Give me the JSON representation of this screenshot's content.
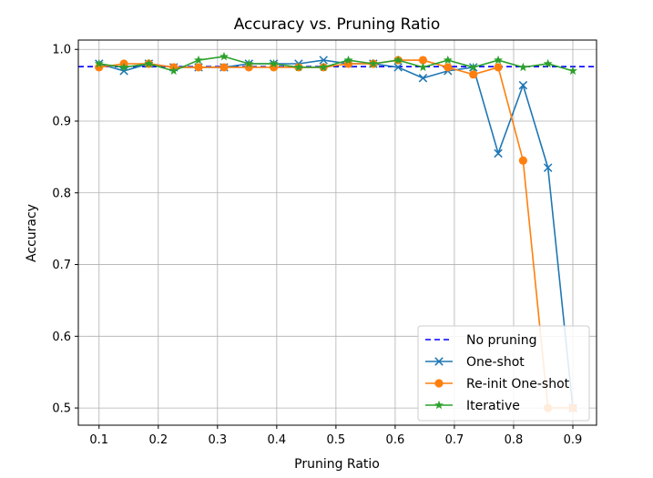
{
  "chart_data": {
    "type": "line",
    "title": "Accuracy vs. Pruning Ratio",
    "xlabel": "Pruning Ratio",
    "ylabel": "Accuracy",
    "xlim": [
      0.065,
      0.94
    ],
    "ylim": [
      0.476,
      1.013
    ],
    "xticks": [
      0.1,
      0.2,
      0.3,
      0.4,
      0.5,
      0.6,
      0.7,
      0.8,
      0.9
    ],
    "xtick_labels": [
      "0.1",
      "0.2",
      "0.3",
      "0.4",
      "0.5",
      "0.6",
      "0.7",
      "0.8",
      "0.9"
    ],
    "yticks": [
      0.5,
      0.6,
      0.7,
      0.8,
      0.9,
      1.0
    ],
    "ytick_labels": [
      "0.5",
      "0.6",
      "0.7",
      "0.8",
      "0.9",
      "1.0"
    ],
    "grid": true,
    "legend_position": "bottom-right",
    "x": [
      0.1,
      0.142,
      0.184,
      0.226,
      0.268,
      0.311,
      0.353,
      0.395,
      0.437,
      0.479,
      0.521,
      0.563,
      0.605,
      0.647,
      0.689,
      0.732,
      0.774,
      0.816,
      0.858,
      0.9
    ],
    "reference_line": {
      "name": "No pruning",
      "y": 0.976,
      "color": "#0000ff",
      "style": "dashed"
    },
    "series": [
      {
        "name": "One-shot",
        "color": "#1f77b4",
        "marker": "x",
        "values": [
          0.98,
          0.97,
          0.98,
          0.975,
          0.975,
          0.975,
          0.98,
          0.98,
          0.98,
          0.985,
          0.98,
          0.98,
          0.975,
          0.96,
          0.97,
          0.975,
          0.855,
          0.95,
          0.835,
          0.5
        ]
      },
      {
        "name": "Re-init One-shot",
        "color": "#ff7f0e",
        "marker": "o",
        "values": [
          0.975,
          0.98,
          0.98,
          0.975,
          0.975,
          0.975,
          0.975,
          0.975,
          0.975,
          0.975,
          0.98,
          0.98,
          0.985,
          0.985,
          0.975,
          0.965,
          0.975,
          0.845,
          0.5,
          0.5
        ]
      },
      {
        "name": "Iterative",
        "color": "#2ca02c",
        "marker": "*",
        "values": [
          0.98,
          0.975,
          0.98,
          0.97,
          0.985,
          0.99,
          0.98,
          0.98,
          0.975,
          0.975,
          0.985,
          0.98,
          0.985,
          0.975,
          0.985,
          0.975,
          0.985,
          0.975,
          0.98,
          0.97
        ]
      }
    ]
  }
}
